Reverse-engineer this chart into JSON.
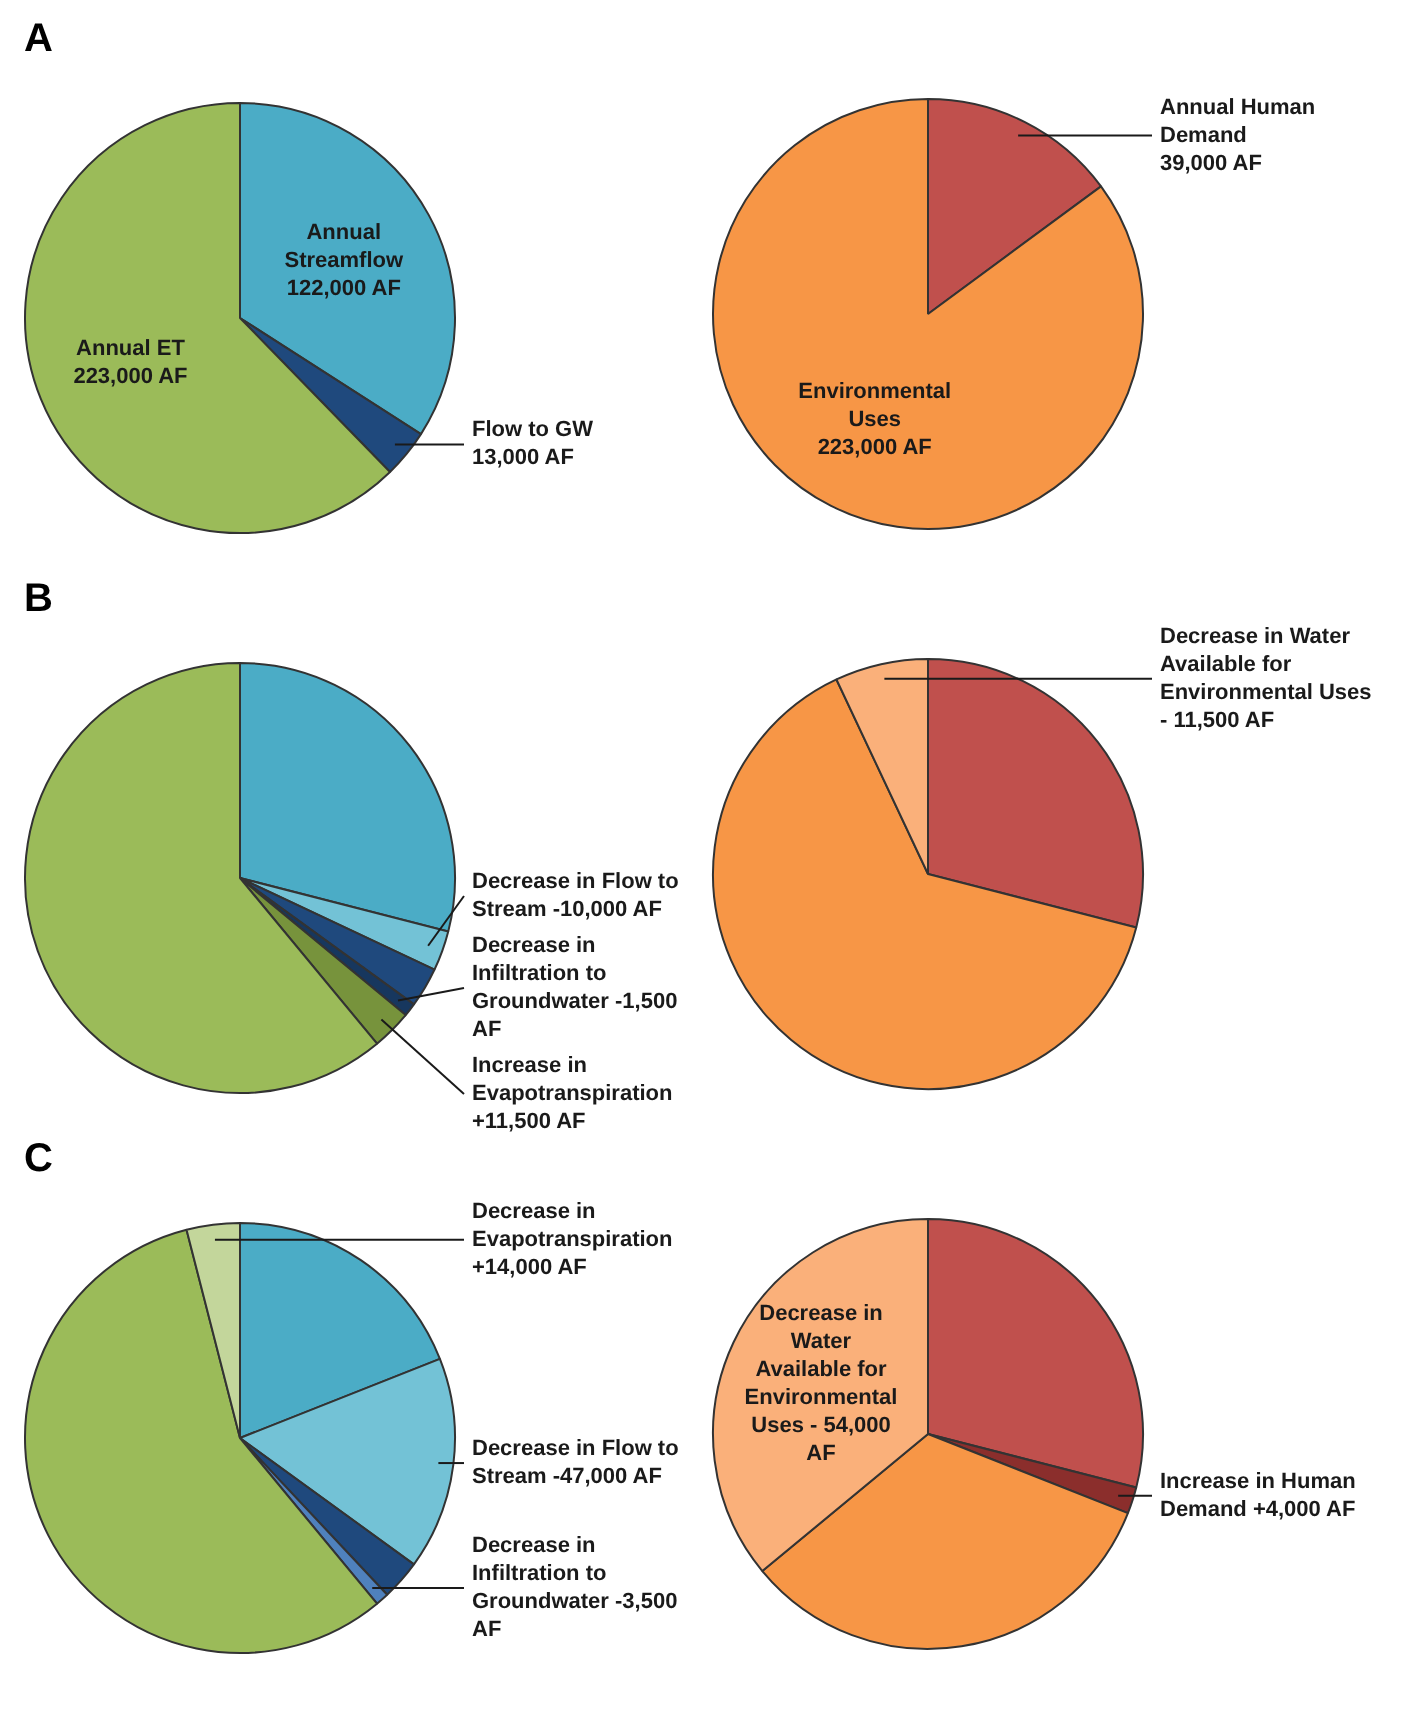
{
  "chart_data": [
    {
      "type": "pie",
      "title": "A",
      "categories": [
        "Annual Streamflow",
        "Flow to GW",
        "Annual ET"
      ],
      "values": [
        122000,
        13000,
        223000
      ],
      "colors": [
        "#4bacc6",
        "#1f497d",
        "#9bbb59"
      ],
      "value_labels": [
        "122,000 AF",
        "13,000 AF",
        "223,000 AF"
      ],
      "legend": false
    },
    {
      "type": "pie",
      "categories": [
        "Annual Human Demand",
        "Environmental Uses"
      ],
      "values": [
        39000,
        223000
      ],
      "colors": [
        "#c0504d",
        "#f79646"
      ],
      "value_labels": [
        "39,000 AF",
        "223,000 AF"
      ],
      "legend": false
    },
    {
      "type": "pie",
      "title": "B",
      "categories": [
        null,
        "Decrease in Flow to Stream -10,000 AF",
        null,
        "Decrease in Infiltration to Groundwater -1,500 AF",
        "Increase in Evapotranspiration +11,500 AF",
        null
      ],
      "values": [
        29,
        3,
        3,
        1,
        3,
        61
      ],
      "colors": [
        "#4bacc6",
        "#73c2d6",
        "#1f497d",
        "#17375e",
        "#77933c",
        "#9bbb59"
      ],
      "legend": false
    },
    {
      "type": "pie",
      "categories": [
        null,
        null,
        "Decrease in Water Available for Environmental Uses - 11,500 AF"
      ],
      "values": [
        29,
        64,
        7
      ],
      "colors": [
        "#c0504d",
        "#f79646",
        "#fab07a"
      ],
      "legend": false
    },
    {
      "type": "pie",
      "title": "C",
      "categories": [
        null,
        "Decrease in Flow to Stream -47,000 AF",
        null,
        "Decrease in Infiltration to Groundwater -3,500 AF",
        null,
        "Decrease in Evapotranspiration +14,000 AF"
      ],
      "values": [
        19,
        16,
        3,
        1,
        57,
        4
      ],
      "colors": [
        "#4bacc6",
        "#73c2d6",
        "#1f497d",
        "#4f81bd",
        "#9bbb59",
        "#c3d69b"
      ],
      "legend": false
    },
    {
      "type": "pie",
      "categories": [
        null,
        "Increase in Human Demand +4,000 AF",
        null,
        "Decrease in Water Available for Environmental Uses - 54,000 AF"
      ],
      "values": [
        29,
        2,
        33,
        36
      ],
      "colors": [
        "#c0504d",
        "#8b2e2c",
        "#f79646",
        "#fab07a"
      ],
      "legend": false
    }
  ]
}
